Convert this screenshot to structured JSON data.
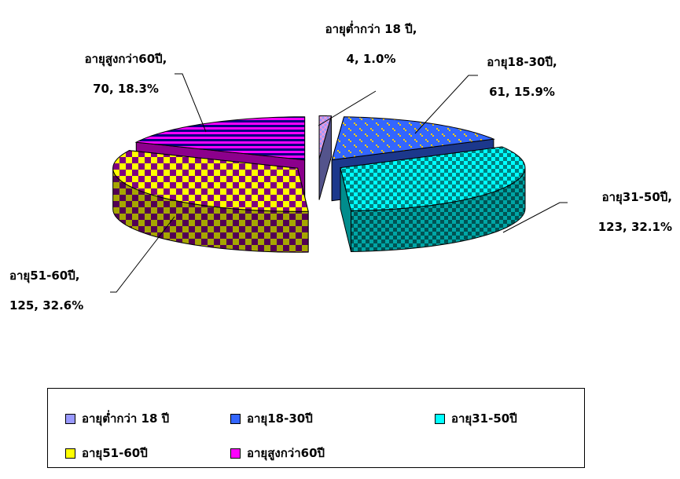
{
  "chart_data": {
    "type": "pie",
    "style": "3d-exploded",
    "categories": [
      "อายุต่ำกว่า 18 ปี",
      "อายุ18-30ปี",
      "อายุ31-50ปี",
      "อายุ51-60ปี",
      "อายุสูงกว่า60ปี"
    ],
    "values": [
      4,
      61,
      123,
      125,
      70
    ],
    "percentages": [
      "1.0%",
      "15.9%",
      "32.1%",
      "32.6%",
      "18.3%"
    ],
    "colors": [
      "#9999ff",
      "#3366ff",
      "#00ffff",
      "#ffff00",
      "#ff00ff"
    ],
    "pattern_colors": [
      "#ff99cc",
      "#ffcc00",
      "#008080",
      "#800080",
      "#000080"
    ],
    "data_labels": [
      {
        "line1": "อายุต่ำกว่า 18 ปี,",
        "line2": "4, 1.0%"
      },
      {
        "line1": "อายุ18-30ปี,",
        "line2": "61, 15.9%"
      },
      {
        "line1": "อายุ31-50ปี,",
        "line2": "123, 32.1%"
      },
      {
        "line1": "อายุ51-60ปี,",
        "line2": "125, 32.6%"
      },
      {
        "line1": "อายุสูงกว่า60ปี,",
        "line2": "70, 18.3%"
      }
    ],
    "legend": {
      "placement": "bottom",
      "entries": [
        "อายุต่ำกว่า 18 ปี",
        "อายุ18-30ปี",
        "อายุ31-50ปี",
        "อายุ51-60ปี",
        "อายุสูงกว่า60ปี"
      ]
    }
  }
}
